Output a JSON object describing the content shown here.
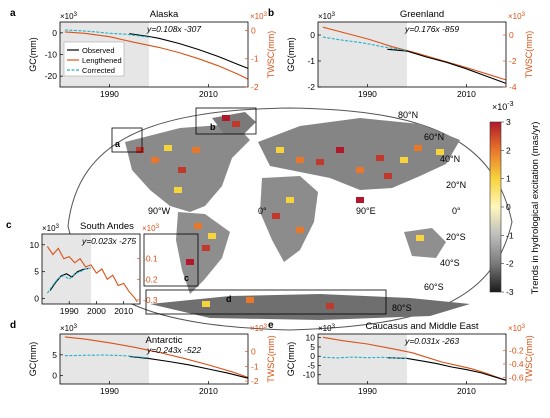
{
  "colors": {
    "observed": "#000000",
    "lengthened": "#d95319",
    "corrected": "#20b2c8",
    "tws_axis": "#d95319",
    "shade": "#e6e6e6"
  },
  "map": {
    "lat_labels": [
      "80°N",
      "60°N",
      "40°N",
      "20°N",
      "0°",
      "20°S",
      "40°S",
      "60°S",
      "80°S"
    ],
    "lon_labels": [
      "90°W",
      "0°",
      "90°E"
    ],
    "box_labels": [
      "a",
      "b",
      "c",
      "d"
    ],
    "colorbar": {
      "title": "Trends in hydrological excitation (mas/yr)",
      "exponent": "×10",
      "exponent_power": "-3",
      "ticks": [
        "3",
        "2",
        "1",
        "0",
        "-1",
        "-2",
        "-3"
      ],
      "stops": [
        "#b2182b",
        "#e8772a",
        "#f7d33c",
        "#fff7bc",
        "#bdbdbd",
        "#7a7a7a",
        "#1a1a1a"
      ]
    }
  },
  "chart_data": [
    {
      "panel": "a",
      "title": "Alaska",
      "type": "line",
      "equation": "y=0.108x -307",
      "ylabel": "GC(mm)",
      "y2label": "TWSC(mm)",
      "yexp": "×10",
      "yexp_pow": "3",
      "y2exp": "×10",
      "y2exp_pow": "3",
      "xlim": [
        1980,
        2018
      ],
      "ylim": [
        -25,
        5
      ],
      "y2lim": [
        -2,
        0.3
      ],
      "xticks": [
        1990,
        2010
      ],
      "yticks": [
        0,
        -10,
        -20
      ],
      "y2ticks": [
        0,
        -1,
        -2
      ],
      "shade": [
        1980,
        1998
      ],
      "legend": [
        "Observed",
        "Lengthened",
        "Corrected"
      ],
      "observed": [
        [
          1994,
          -0.4
        ],
        [
          1998,
          -1.7
        ],
        [
          2000,
          -2.5
        ],
        [
          2004,
          -4.9
        ],
        [
          2008,
          -7.7
        ],
        [
          2012,
          -10.9
        ],
        [
          2016,
          -14.6
        ],
        [
          2018,
          -16.4
        ]
      ],
      "corrected": [
        [
          1981,
          1.3
        ],
        [
          1984,
          1.0
        ],
        [
          1987,
          0.5
        ],
        [
          1990,
          -0.2
        ],
        [
          1993,
          -0.6
        ],
        [
          1996,
          -1.4
        ],
        [
          1998,
          -2.0
        ]
      ],
      "lengthened": [
        [
          1981,
          -0.05
        ],
        [
          1985,
          -0.1
        ],
        [
          1990,
          -0.22
        ],
        [
          1995,
          -0.42
        ],
        [
          2000,
          -0.6
        ],
        [
          2004,
          -0.78
        ],
        [
          2008,
          -1.0
        ],
        [
          2012,
          -1.25
        ],
        [
          2016,
          -1.55
        ],
        [
          2018,
          -1.72
        ]
      ]
    },
    {
      "panel": "b",
      "title": "Greenland",
      "type": "line",
      "equation": "y=0.176x -859",
      "ylabel": "GC(mm)",
      "y2label": "TWSC(mm)",
      "yexp": "×10",
      "yexp_pow": "3",
      "y2exp": "×10",
      "y2exp_pow": "3",
      "xlim": [
        1980,
        2018
      ],
      "ylim": [
        -2,
        0.5
      ],
      "y2lim": [
        -4,
        1
      ],
      "xticks": [
        1990,
        2010
      ],
      "yticks": [
        0,
        -1,
        -2
      ],
      "y2ticks": [
        0,
        -2,
        -4
      ],
      "shade": [
        1980,
        1998
      ],
      "observed": [
        [
          1994,
          -0.55
        ],
        [
          1998,
          -0.62
        ],
        [
          2002,
          -0.85
        ],
        [
          2006,
          -1.05
        ],
        [
          2010,
          -1.3
        ],
        [
          2014,
          -1.58
        ],
        [
          2018,
          -1.86
        ]
      ],
      "corrected": [
        [
          1981,
          -0.08
        ],
        [
          1985,
          -0.2
        ],
        [
          1989,
          -0.3
        ],
        [
          1993,
          -0.45
        ],
        [
          1998,
          -0.6
        ]
      ],
      "lengthened": [
        [
          1981,
          0.6
        ],
        [
          1985,
          0.2
        ],
        [
          1990,
          -0.3
        ],
        [
          1995,
          -0.9
        ],
        [
          2000,
          -1.4
        ],
        [
          2005,
          -1.95
        ],
        [
          2010,
          -2.5
        ],
        [
          2015,
          -3.1
        ],
        [
          2018,
          -3.45
        ]
      ]
    },
    {
      "panel": "c",
      "title": "South Andes",
      "type": "line",
      "equation": "y=0.023x -275",
      "ylabel": "",
      "y2label": "",
      "yexp": "×10",
      "yexp_pow": "3",
      "y2exp": "×10",
      "y2exp_pow": "3",
      "xlim": [
        1980,
        2016
      ],
      "ylim": [
        -1,
        12
      ],
      "y2lim": [
        -0.32,
        0.02
      ],
      "xticks": [
        1990,
        2000,
        2010
      ],
      "yticks": [
        10,
        5,
        0
      ],
      "y2ticks": [
        -0.1,
        -0.2,
        -0.3
      ],
      "shade": [
        1980,
        1998
      ],
      "observed": [
        [
          1983,
          1.5
        ],
        [
          1985,
          3.0
        ],
        [
          1987,
          4.2
        ],
        [
          1989,
          4.6
        ],
        [
          1991,
          4.0
        ],
        [
          1993,
          5.0
        ],
        [
          1995,
          5.4
        ],
        [
          1997,
          5.6
        ]
      ],
      "corrected": [
        [
          1982,
          1.0
        ],
        [
          1984,
          2.5
        ],
        [
          1986,
          3.8
        ],
        [
          1988,
          4.3
        ],
        [
          1990,
          3.6
        ],
        [
          1992,
          4.6
        ],
        [
          1994,
          5.0
        ],
        [
          1996,
          5.5
        ],
        [
          1998,
          5.7
        ]
      ],
      "lengthened": [
        [
          1982,
          -0.04
        ],
        [
          1984,
          -0.08
        ],
        [
          1986,
          -0.05
        ],
        [
          1988,
          -0.1
        ],
        [
          1990,
          -0.09
        ],
        [
          1992,
          -0.12
        ],
        [
          1994,
          -0.1
        ],
        [
          1996,
          -0.14
        ],
        [
          1998,
          -0.13
        ],
        [
          2000,
          -0.17
        ],
        [
          2002,
          -0.15
        ],
        [
          2004,
          -0.2
        ],
        [
          2006,
          -0.18
        ],
        [
          2008,
          -0.23
        ],
        [
          2010,
          -0.22
        ],
        [
          2012,
          -0.26
        ],
        [
          2014,
          -0.29
        ],
        [
          2015,
          -0.31
        ]
      ]
    },
    {
      "panel": "d",
      "title": "Antarctic",
      "type": "line",
      "equation": "y=0.243x -522",
      "ylabel": "GC(mm)",
      "y2label": "TWSC(mm)",
      "yexp": "×10",
      "yexp_pow": "3",
      "y2exp": "×10",
      "y2exp_pow": "3",
      "xlim": [
        1980,
        2018
      ],
      "ylim": [
        -2,
        10
      ],
      "y2lim": [
        -2.2,
        1.2
      ],
      "xticks": [
        1990,
        2010
      ],
      "yticks": [
        5,
        0
      ],
      "y2ticks": [
        0,
        -1,
        -2
      ],
      "shade": [
        1980,
        1998
      ],
      "observed": [
        [
          1994,
          4.6
        ],
        [
          1998,
          4.1
        ],
        [
          2002,
          3.4
        ],
        [
          2006,
          2.6
        ],
        [
          2010,
          1.6
        ],
        [
          2014,
          0.6
        ],
        [
          2018,
          -0.6
        ]
      ],
      "corrected": [
        [
          1981,
          4.8
        ],
        [
          1985,
          4.9
        ],
        [
          1989,
          4.95
        ],
        [
          1993,
          4.8
        ],
        [
          1998,
          4.3
        ]
      ],
      "lengthened": [
        [
          1981,
          1.0
        ],
        [
          1985,
          0.85
        ],
        [
          1990,
          0.6
        ],
        [
          1995,
          0.3
        ],
        [
          2000,
          -0.05
        ],
        [
          2005,
          -0.45
        ],
        [
          2010,
          -0.9
        ],
        [
          2015,
          -1.4
        ],
        [
          2018,
          -1.75
        ]
      ]
    },
    {
      "panel": "e",
      "title": "Caucasus and Middle East",
      "type": "line",
      "equation": "y=0.031x -263",
      "ylabel": "GC(mm)",
      "y2label": "TWSC(mm)",
      "yexp": "×10",
      "yexp_pow": "3",
      "y2exp": "×10",
      "y2exp_pow": "3",
      "xlim": [
        1980,
        2018
      ],
      "ylim": [
        -15,
        12
      ],
      "y2lim": [
        -0.7,
        0.05
      ],
      "xticks": [
        1990,
        2010
      ],
      "yticks": [
        10,
        5,
        0,
        -5,
        -10
      ],
      "y2ticks": [
        -0.2,
        -0.4,
        -0.6
      ],
      "shade": [
        1980,
        1998
      ],
      "observed": [
        [
          1994,
          -0.8
        ],
        [
          1998,
          -1.2
        ],
        [
          2001,
          -2.5
        ],
        [
          2004,
          -4.0
        ],
        [
          2007,
          -5.8
        ],
        [
          2010,
          -7.2
        ],
        [
          2013,
          -9.0
        ],
        [
          2016,
          -11.4
        ],
        [
          2018,
          -13.0
        ]
      ],
      "corrected": [
        [
          1981,
          -0.6
        ],
        [
          1984,
          -0.9
        ],
        [
          1987,
          -0.5
        ],
        [
          1990,
          -0.8
        ],
        [
          1993,
          -0.6
        ],
        [
          1996,
          -1.0
        ],
        [
          1998,
          -1.2
        ]
      ],
      "lengthened": [
        [
          1981,
          0.0
        ],
        [
          1985,
          -0.05
        ],
        [
          1990,
          -0.1
        ],
        [
          1995,
          -0.17
        ],
        [
          1999,
          -0.23
        ],
        [
          2002,
          -0.3
        ],
        [
          2005,
          -0.37
        ],
        [
          2008,
          -0.42
        ],
        [
          2011,
          -0.47
        ],
        [
          2014,
          -0.54
        ],
        [
          2017,
          -0.62
        ],
        [
          2018,
          -0.64
        ]
      ]
    }
  ]
}
